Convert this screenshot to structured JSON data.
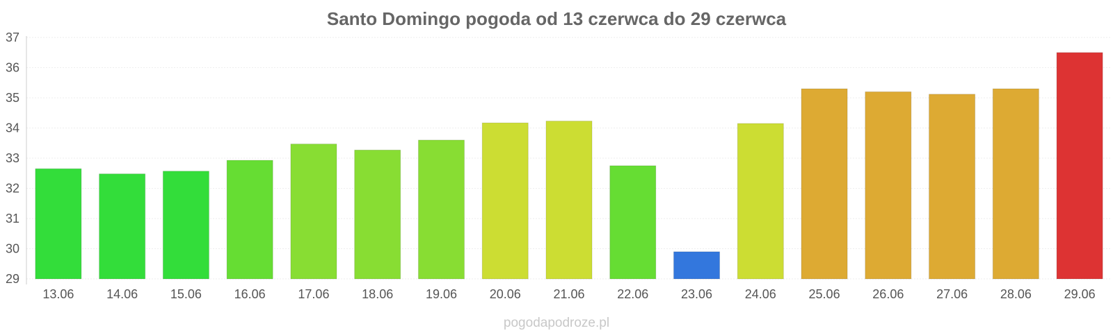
{
  "chart_data": {
    "type": "bar",
    "title": "Santo Domingo pogoda od 13 czerwca do 29 czerwca",
    "xlabel": "",
    "ylabel": "",
    "categories": [
      "13.06",
      "14.06",
      "15.06",
      "16.06",
      "17.06",
      "18.06",
      "19.06",
      "20.06",
      "21.06",
      "22.06",
      "23.06",
      "24.06",
      "25.06",
      "26.06",
      "27.06",
      "28.06",
      "29.06"
    ],
    "values": [
      32.65,
      32.48,
      32.57,
      32.93,
      33.47,
      33.27,
      33.6,
      34.17,
      34.23,
      32.75,
      29.9,
      34.15,
      35.3,
      35.2,
      35.12,
      35.3,
      36.5
    ],
    "bar_colors": [
      "#33dd3a",
      "#33dd3a",
      "#33dd3a",
      "#66dd33",
      "#88dd33",
      "#88dd33",
      "#88dd33",
      "#ccdd33",
      "#ccdd33",
      "#66dd33",
      "#3377dd",
      "#ccdd33",
      "#ddaa33",
      "#ddaa33",
      "#ddaa33",
      "#ddaa33",
      "#dd3333"
    ],
    "yticks": [
      29,
      30,
      31,
      32,
      33,
      34,
      35,
      36,
      37
    ],
    "ylim": [
      29,
      37
    ],
    "grid": true,
    "legend": "none"
  },
  "watermark": "pogodapodroze.pl"
}
